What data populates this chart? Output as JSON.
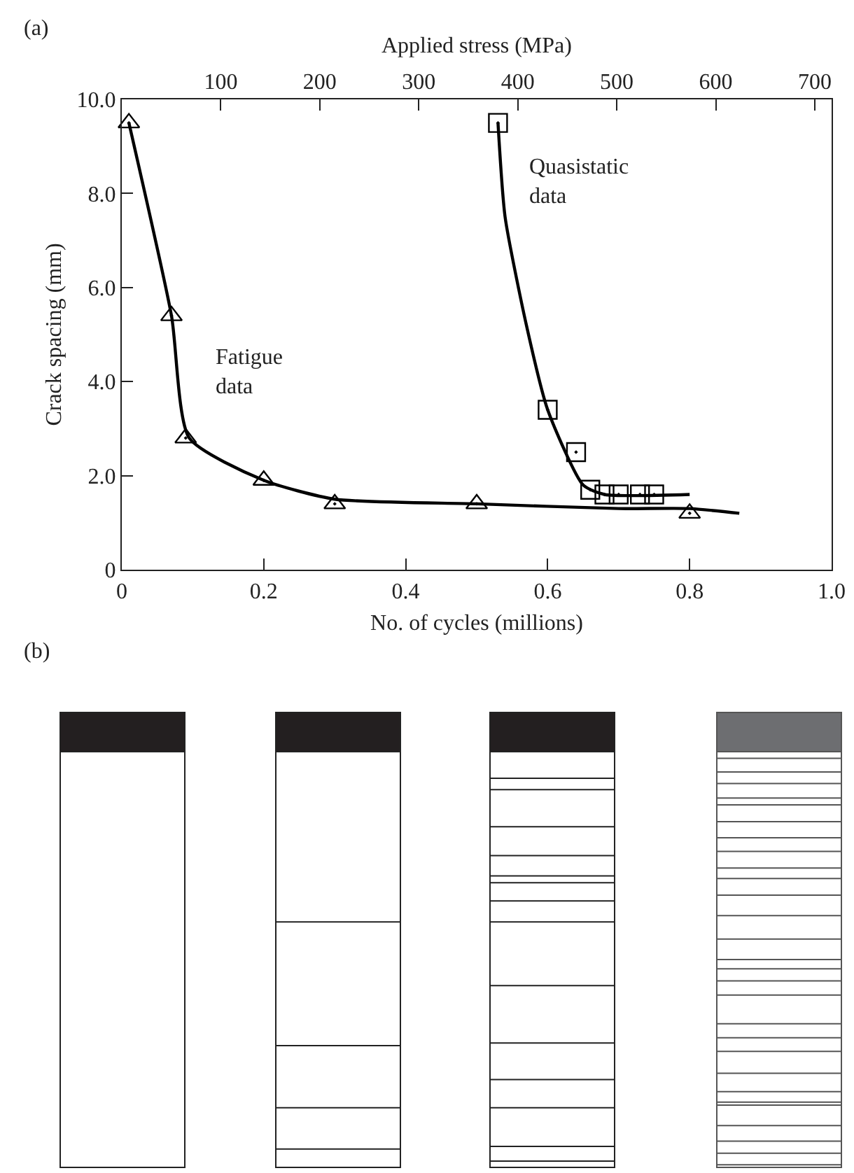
{
  "chart_data": {
    "type": "scatter",
    "xlabel": "No. of cycles (millions)",
    "x2label": "Applied stress (MPa)",
    "ylabel": "Crack spacing (mm)",
    "xlim": [
      0,
      1
    ],
    "xticks": [
      0,
      0.2,
      0.4,
      0.6,
      0.8,
      {
        "value": 1,
        "label": "1.0"
      }
    ],
    "x2lim": [
      0,
      717
    ],
    "x2ticks": [
      100,
      200,
      300,
      400,
      500,
      600,
      700
    ],
    "ylim": [
      0,
      10
    ],
    "yticks": [
      0,
      {
        "value": 2,
        "label": "2.0"
      },
      {
        "value": 4,
        "label": "4.0"
      },
      {
        "value": 6,
        "label": "6.0"
      },
      {
        "value": 8,
        "label": "8.0"
      },
      {
        "value": 10,
        "label": "10.0"
      }
    ],
    "grid": false,
    "legend": false,
    "series": [
      {
        "name": "Fatigue data",
        "marker": "triangle",
        "color": "#000000",
        "x": [
          0.01,
          0.07,
          0.09,
          0.2,
          0.3,
          0.5,
          0.8
        ],
        "values": [
          9.5,
          5.4,
          2.8,
          1.9,
          1.4,
          1.4,
          1.2
        ]
      },
      {
        "name": "Quasistatic data",
        "marker": "square",
        "color": "#000000",
        "x": [
          0.53,
          0.6,
          0.64,
          0.66,
          0.68,
          0.7,
          0.73,
          0.75
        ],
        "values": [
          9.5,
          3.4,
          2.5,
          1.7,
          1.6,
          1.6,
          1.6,
          1.6
        ]
      },
      {
        "type": "line",
        "marker": "none",
        "line_style": "solid",
        "color": "#000000",
        "x": [
          0.01,
          0.07,
          0.095,
          0.2,
          0.3,
          0.5,
          0.7,
          0.8,
          0.87
        ],
        "values": [
          9.5,
          5.4,
          2.8,
          1.9,
          1.5,
          1.4,
          1.3,
          1.3,
          1.2
        ]
      },
      {
        "type": "line",
        "marker": "none",
        "line_style": "solid",
        "color": "#000000",
        "x": [
          0.53,
          0.54,
          0.57,
          0.6,
          0.65,
          0.68,
          0.8
        ],
        "values": [
          9.5,
          7.5,
          5.2,
          3.4,
          1.8,
          1.6,
          1.6
        ]
      }
    ],
    "annotations": [
      "(a)",
      "(b)"
    ]
  }
}
